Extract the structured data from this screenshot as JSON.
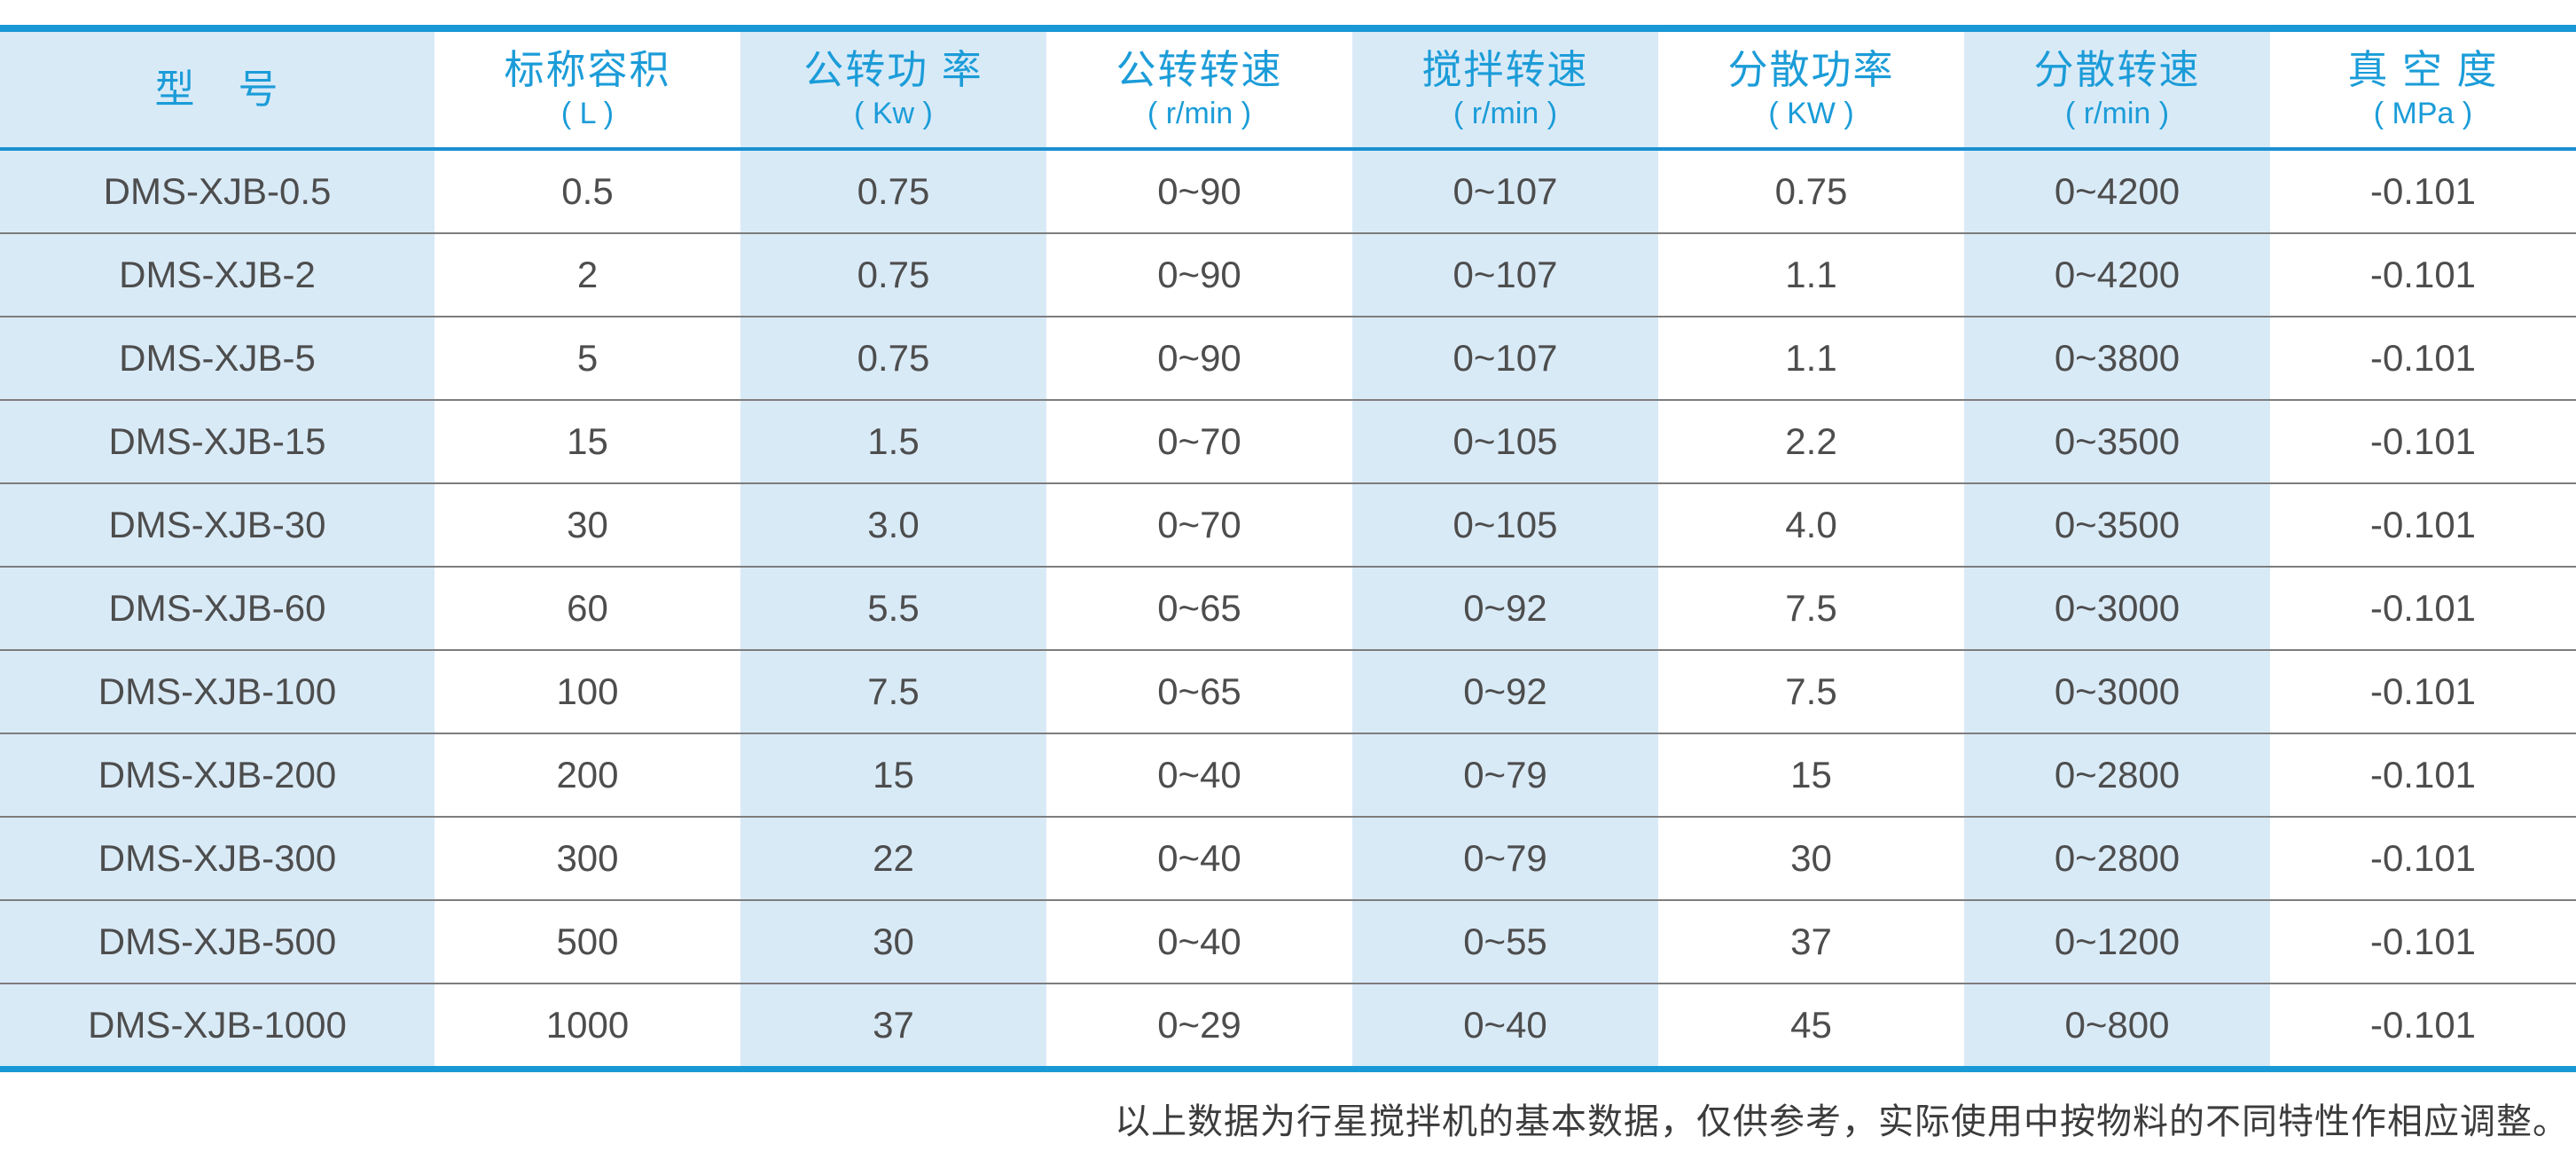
{
  "table": {
    "columns": [
      {
        "title": "型　号",
        "unit": ""
      },
      {
        "title": "标称容积",
        "unit": "( L )"
      },
      {
        "title": "公转功 率",
        "unit": "( Kw )"
      },
      {
        "title": "公转转速",
        "unit": "( r/min )"
      },
      {
        "title": "搅拌转速",
        "unit": "( r/min )"
      },
      {
        "title": "分散功率",
        "unit": "( KW )"
      },
      {
        "title": "分散转速",
        "unit": "( r/min )"
      },
      {
        "title": "真 空 度",
        "unit": "( MPa )"
      }
    ],
    "rows": [
      [
        "DMS-XJB-0.5",
        "0.5",
        "0.75",
        "0~90",
        "0~107",
        "0.75",
        "0~4200",
        "-0.101"
      ],
      [
        "DMS-XJB-2",
        "2",
        "0.75",
        "0~90",
        "0~107",
        "1.1",
        "0~4200",
        "-0.101"
      ],
      [
        "DMS-XJB-5",
        "5",
        "0.75",
        "0~90",
        "0~107",
        "1.1",
        "0~3800",
        "-0.101"
      ],
      [
        "DMS-XJB-15",
        "15",
        "1.5",
        "0~70",
        "0~105",
        "2.2",
        "0~3500",
        "-0.101"
      ],
      [
        "DMS-XJB-30",
        "30",
        "3.0",
        "0~70",
        "0~105",
        "4.0",
        "0~3500",
        "-0.101"
      ],
      [
        "DMS-XJB-60",
        "60",
        "5.5",
        "0~65",
        "0~92",
        "7.5",
        "0~3000",
        "-0.101"
      ],
      [
        "DMS-XJB-100",
        "100",
        "7.5",
        "0~65",
        "0~92",
        "7.5",
        "0~3000",
        "-0.101"
      ],
      [
        "DMS-XJB-200",
        "200",
        "15",
        "0~40",
        "0~79",
        "15",
        "0~2800",
        "-0.101"
      ],
      [
        "DMS-XJB-300",
        "300",
        "22",
        "0~40",
        "0~79",
        "30",
        "0~2800",
        "-0.101"
      ],
      [
        "DMS-XJB-500",
        "500",
        "30",
        "0~40",
        "0~55",
        "37",
        "0~1200",
        "-0.101"
      ],
      [
        "DMS-XJB-1000",
        "1000",
        "37",
        "0~29",
        "0~40",
        "45",
        "0~800",
        "-0.101"
      ]
    ]
  },
  "footer": {
    "note": "以上数据为行星搅拌机的基本数据，仅供参考，实际使用中按物料的不同特性作相应调整。"
  },
  "colors": {
    "accent_blue": "#1899d6",
    "header_text_blue": "#1b9cd8",
    "stripe_light_blue": "#d9eaf7",
    "body_text_gray": "#4d4d4d",
    "row_divider_gray": "#7d7d7d"
  }
}
